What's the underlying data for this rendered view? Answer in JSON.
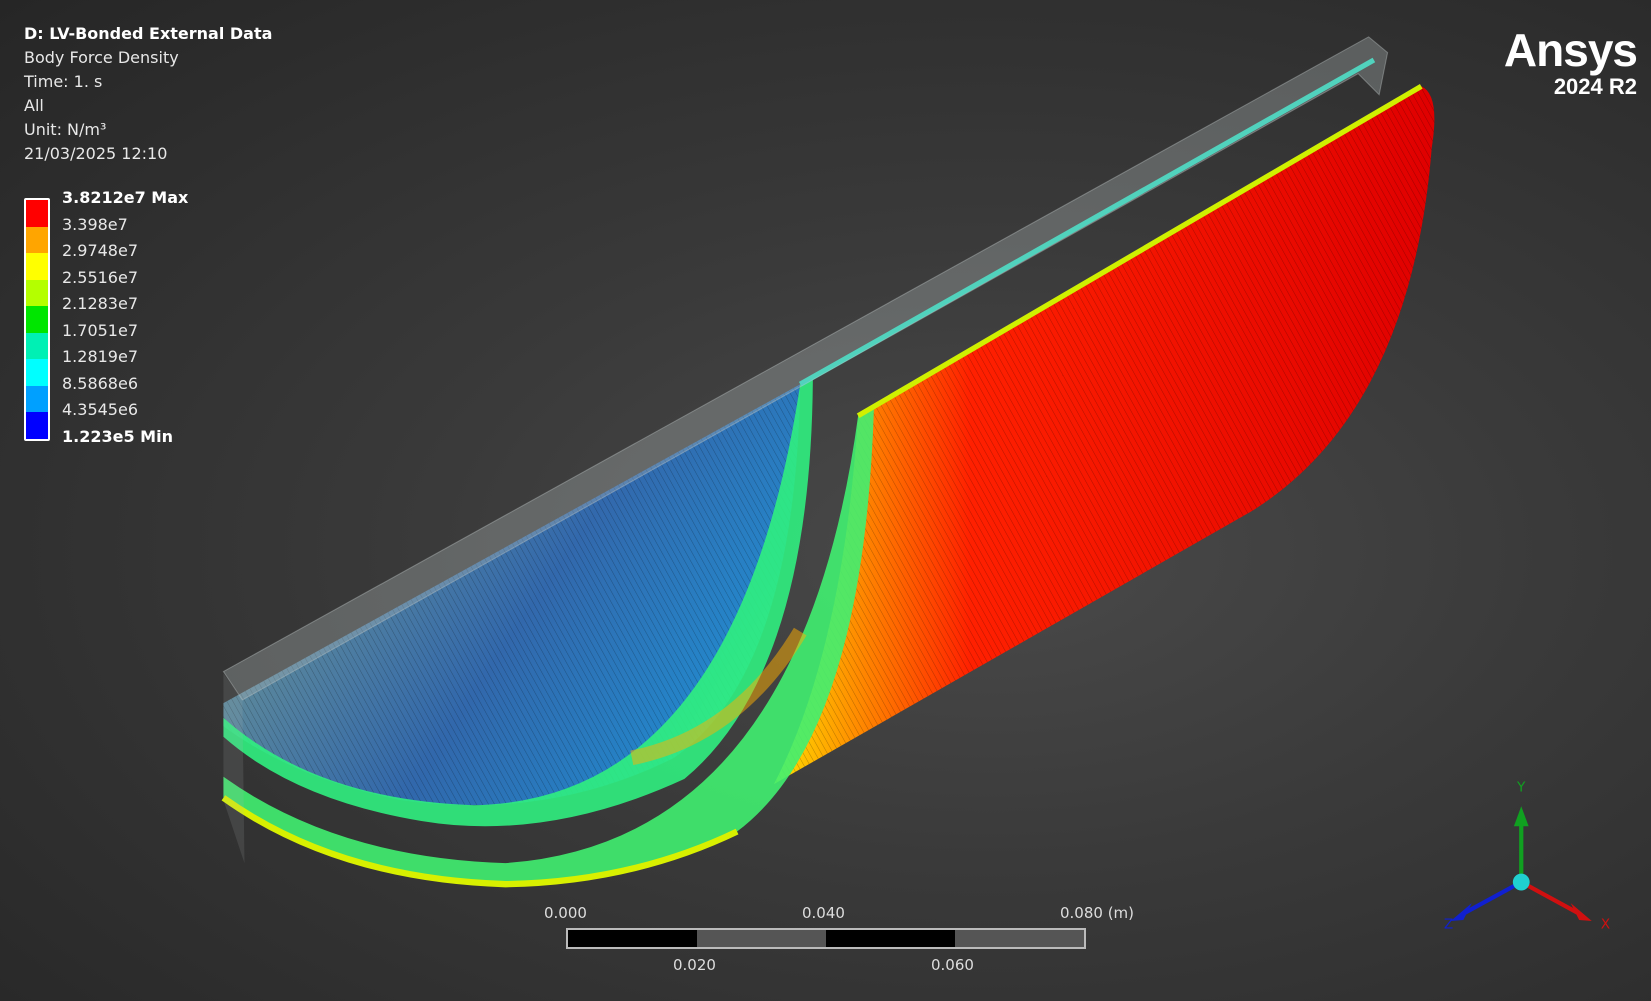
{
  "info": {
    "title": "D: LV-Bonded External Data",
    "result": "Body Force Density",
    "time": "Time: 1. s",
    "scope": "All",
    "unit": "Unit: N/m³",
    "timestamp": "21/03/2025 12:10"
  },
  "legend": {
    "labels": [
      "3.8212e7 Max",
      "3.398e7",
      "2.9748e7",
      "2.5516e7",
      "2.1283e7",
      "1.7051e7",
      "1.2819e7",
      "8.5868e6",
      "4.3545e6",
      "1.223e5 Min"
    ],
    "colors": [
      "#ff0000",
      "#ffa500",
      "#ffff00",
      "#b4ff00",
      "#00e600",
      "#00f0b4",
      "#00ffff",
      "#00a0ff",
      "#0000ff"
    ]
  },
  "logo": {
    "brand": "Ansys",
    "version": "2024 R2"
  },
  "scale_bar": {
    "top_labels": [
      "0.000",
      "0.040",
      "0.080 (m)"
    ],
    "bottom_labels": [
      "0.020",
      "0.060"
    ]
  },
  "triad": {
    "x": "X",
    "y": "Y",
    "z": "Z",
    "colors": {
      "x": "#d01010",
      "y": "#10a020",
      "z": "#1020d0",
      "origin": "#20d0d0"
    }
  }
}
